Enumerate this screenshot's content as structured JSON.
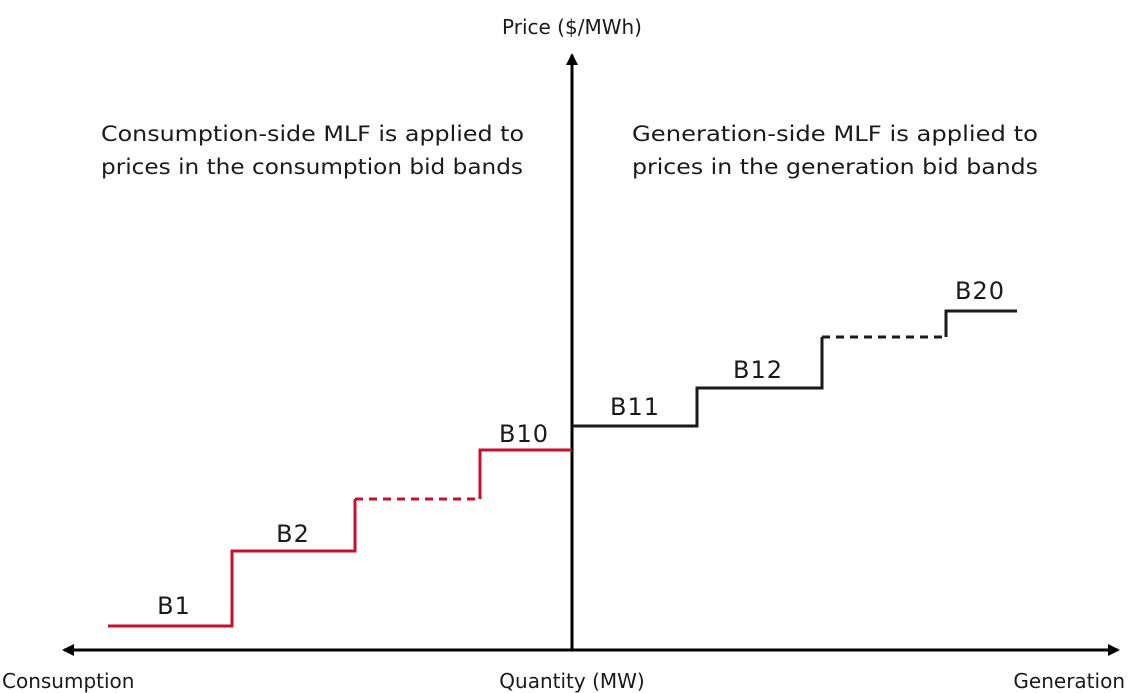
{
  "axes": {
    "y_label": "Price ($/MWh)",
    "x_label": "Quantity (MW)",
    "x_left_label": "Consumption",
    "x_right_label": "Generation"
  },
  "annotations": {
    "consumption_line1": "Consumption-side MLF is applied to",
    "consumption_line2": "prices in the consumption bid bands",
    "generation_line1": "Generation-side MLF is applied to",
    "generation_line2": "prices in the generation bid bands"
  },
  "bands": {
    "b1": "B1",
    "b2": "B2",
    "b10": "B10",
    "b11": "B11",
    "b12": "B12",
    "b20": "B20"
  },
  "colors": {
    "consumption": "#c8102e",
    "generation": "#1a1a1a",
    "axis": "#000000",
    "text": "#1a1a1a"
  }
}
